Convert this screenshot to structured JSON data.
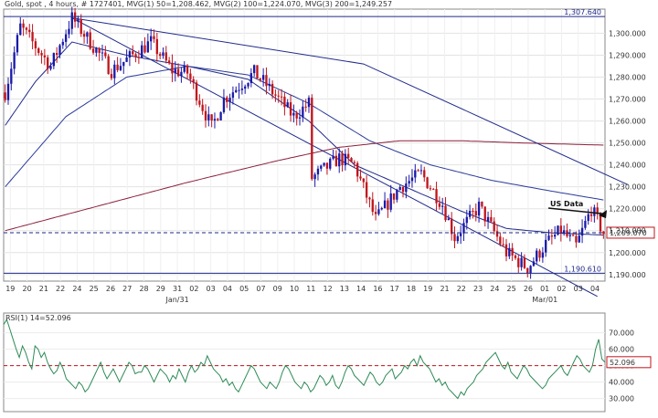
{
  "chart_data": [
    {
      "type": "candlestick",
      "title": "Gold, spot , 4 hours, # 1727401, MVG(1) 50=1,208.462, MVG(2) 100=1,224.070, MVG(3) 200=1,249.257",
      "colors": {
        "up": "#1a1aa8",
        "down": "#c0151d",
        "ma50": "#1f2a8a",
        "ma100": "#2a3a9a",
        "ma200": "#8a1f3a",
        "trend": "#1f2a8a"
      },
      "x_labels": [
        "19",
        "20",
        "21",
        "22",
        "24",
        "25",
        "26",
        "27",
        "28",
        "29",
        "31",
        "02",
        "03",
        "04",
        "05",
        "07",
        "09",
        "10",
        "11",
        "12",
        "13",
        "14",
        "16",
        "17",
        "18",
        "19",
        "21",
        "22",
        "23",
        "24",
        "25",
        "26",
        "01",
        "02",
        "03",
        "04"
      ],
      "month_labels": [
        {
          "label": "Jan/31",
          "after": "31"
        },
        {
          "label": "Mar/01",
          "after": "01"
        }
      ],
      "ylim": [
        1187,
        1311
      ],
      "y_ticks": [
        1190,
        1200,
        1210,
        1220,
        1230,
        1240,
        1250,
        1260,
        1270,
        1280,
        1290,
        1300
      ],
      "y_tick_labels": [
        "1,190.000",
        "1,200.000",
        "1,210.000",
        "1,220.000",
        "1,230.000",
        "1,240.000",
        "1,250.000",
        "1,260.000",
        "1,270.000",
        "1,280.000",
        "1,290.000",
        "1,300.000"
      ],
      "price_labels": [
        {
          "value": 1307.64,
          "label": "1,307.640",
          "style": "line"
        },
        {
          "value": 1209.07,
          "label": "1,209.070",
          "style": "current"
        },
        {
          "value": 1190.61,
          "label": "1,190.610",
          "style": "line"
        }
      ],
      "moving_averages": [
        {
          "name": "MVG(1) 50",
          "value": 1208.462
        },
        {
          "name": "MVG(2) 100",
          "value": 1224.07
        },
        {
          "name": "MVG(3) 200",
          "value": 1249.257
        }
      ],
      "annotation": {
        "text": "US Data",
        "target_value": 1219
      },
      "trend_anchors": [
        {
          "name": "upper-trendline",
          "points": [
            [
              22,
              1307
            ],
            [
              118,
              1286
            ],
            [
              205,
              1231
            ]
          ]
        },
        {
          "name": "lower-trendline",
          "points": [
            [
              22,
              1307
            ],
            [
              195,
              1180
            ]
          ]
        }
      ],
      "series_anchors": {
        "ohlc": [
          [
            0,
            1273
          ],
          [
            5,
            1303
          ],
          [
            15,
            1285
          ],
          [
            22,
            1307
          ],
          [
            35,
            1283
          ],
          [
            48,
            1296
          ],
          [
            55,
            1283
          ],
          [
            60,
            1282
          ],
          [
            68,
            1257
          ],
          [
            72,
            1270
          ],
          [
            82,
            1282
          ],
          [
            85,
            1278
          ],
          [
            90,
            1270
          ],
          [
            95,
            1262
          ],
          [
            100,
            1268
          ],
          [
            101,
            1234
          ],
          [
            110,
            1243
          ],
          [
            115,
            1240
          ],
          [
            122,
            1215
          ],
          [
            130,
            1230
          ],
          [
            137,
            1236
          ],
          [
            144,
            1222
          ],
          [
            148,
            1207
          ],
          [
            156,
            1221
          ],
          [
            165,
            1200
          ],
          [
            172,
            1193
          ],
          [
            178,
            1204
          ],
          [
            183,
            1210
          ],
          [
            188,
            1203
          ],
          [
            193,
            1220
          ],
          [
            197,
            1209
          ]
        ],
        "ma50": [
          [
            0,
            1258
          ],
          [
            10,
            1278
          ],
          [
            22,
            1296
          ],
          [
            40,
            1290
          ],
          [
            60,
            1285
          ],
          [
            80,
            1279
          ],
          [
            100,
            1260
          ],
          [
            115,
            1240
          ],
          [
            135,
            1228
          ],
          [
            150,
            1219
          ],
          [
            165,
            1211
          ],
          [
            180,
            1209
          ],
          [
            197,
            1208
          ]
        ],
        "ma100": [
          [
            0,
            1230
          ],
          [
            20,
            1262
          ],
          [
            40,
            1280
          ],
          [
            60,
            1285
          ],
          [
            80,
            1281
          ],
          [
            100,
            1268
          ],
          [
            120,
            1251
          ],
          [
            140,
            1240
          ],
          [
            160,
            1233
          ],
          [
            180,
            1228
          ],
          [
            197,
            1224
          ]
        ],
        "ma200": [
          [
            0,
            1210
          ],
          [
            30,
            1221
          ],
          [
            60,
            1232
          ],
          [
            90,
            1242
          ],
          [
            110,
            1248
          ],
          [
            130,
            1251
          ],
          [
            150,
            1251
          ],
          [
            170,
            1250
          ],
          [
            197,
            1249
          ]
        ]
      }
    },
    {
      "type": "line",
      "title": "RSI(1) 14=52.096",
      "series": [
        {
          "name": "RSI(1) 14",
          "values": [
            75,
            78,
            72,
            66,
            60,
            55,
            62,
            58,
            52,
            48,
            62,
            60,
            55,
            58,
            52,
            48,
            45,
            47,
            52,
            48,
            42,
            40,
            38,
            36,
            40,
            38,
            34,
            36,
            40,
            44,
            48,
            52,
            46,
            42,
            45,
            48,
            44,
            40,
            44,
            48,
            52,
            50,
            45,
            46,
            46,
            50,
            48,
            44,
            40,
            44,
            48,
            46,
            44,
            40,
            44,
            42,
            48,
            44,
            40,
            46,
            50,
            46,
            48,
            52,
            50,
            56,
            52,
            48,
            46,
            44,
            40,
            42,
            38,
            40,
            36,
            34,
            38,
            42,
            46,
            50,
            48,
            44,
            40,
            38,
            36,
            40,
            38,
            36,
            40,
            46,
            50,
            48,
            44,
            40,
            38,
            36,
            40,
            38,
            34,
            36,
            40,
            44,
            42,
            38,
            40,
            44,
            38,
            36,
            40,
            46,
            50,
            48,
            44,
            42,
            40,
            38,
            42,
            46,
            44,
            40,
            38,
            40,
            44,
            46,
            48,
            42,
            44,
            46,
            50,
            48,
            52,
            54,
            50,
            56,
            52,
            50,
            48,
            44,
            40,
            42,
            38,
            40,
            36,
            34,
            32,
            30,
            34,
            32,
            36,
            38,
            40,
            44,
            46,
            48,
            52,
            54,
            56,
            58,
            54,
            50,
            48,
            52,
            46,
            44,
            42,
            46,
            50,
            48,
            44,
            42,
            40,
            38,
            36,
            38,
            42,
            44,
            46,
            48,
            50,
            46,
            44,
            48,
            52,
            56,
            54,
            50,
            48,
            46,
            50,
            60,
            66,
            54,
            52
          ]
        }
      ],
      "ylim": [
        22,
        82
      ],
      "y_ticks": [
        30,
        40,
        50,
        60,
        70
      ],
      "y_tick_labels": [
        "30.000",
        "40.000",
        "50.000",
        "60.000",
        "70.000"
      ],
      "reference_line": {
        "value": 50,
        "color": "#c0151d"
      },
      "current_label": "52.096",
      "color": "#2e8b57"
    }
  ]
}
